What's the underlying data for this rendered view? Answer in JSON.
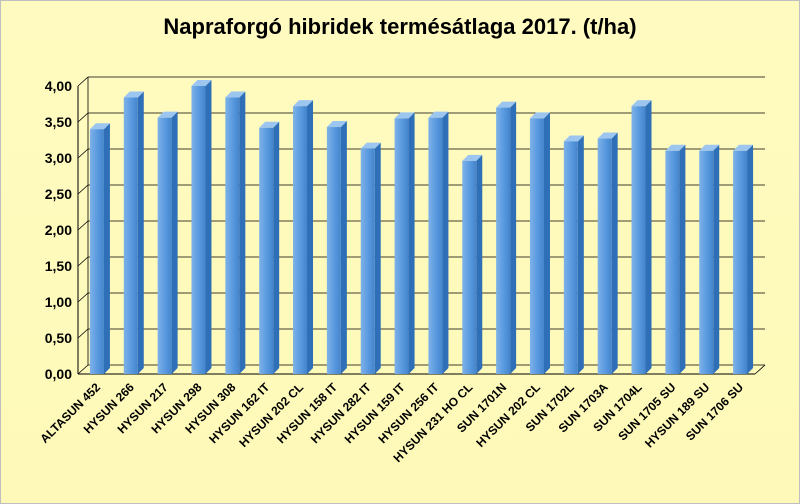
{
  "chart_data": {
    "type": "bar",
    "title": "Napraforgó hibridek termésátlaga 2017. (t/ha)",
    "xlabel": "",
    "ylabel": "",
    "ylim": [
      0,
      4
    ],
    "yticks": [
      "0,00",
      "0,50",
      "1,00",
      "1,50",
      "2,00",
      "2,50",
      "3,00",
      "3,50",
      "4,00"
    ],
    "grid": true,
    "legend": "none",
    "bar_color": "#4f91d6",
    "categories": [
      "ALTASUN 452",
      "HYSUN 266",
      "HYSUN 217",
      "HYSUN 298",
      "HYSUN 308",
      "HYSUN 162 IT",
      "HYSUN 202 CL",
      "HYSUN 158 IT",
      "HYSUN 282 IT",
      "HYSUN 159 IT",
      "HYSUN 256 IT",
      "HYSUN 231 HO CL",
      "SUN 1701N",
      "HYSUN 202 CL",
      "SUN 1702L",
      "SUN 1703A",
      "SUN 1704L",
      "SUN 1705 SU",
      "HYSUN 189 SU",
      "SUN 1706 SU"
    ],
    "values": [
      3.4,
      3.84,
      3.56,
      4.0,
      3.84,
      3.42,
      3.72,
      3.43,
      3.13,
      3.55,
      3.56,
      2.96,
      3.7,
      3.55,
      3.23,
      3.27,
      3.72,
      3.1,
      3.1,
      3.1
    ]
  }
}
